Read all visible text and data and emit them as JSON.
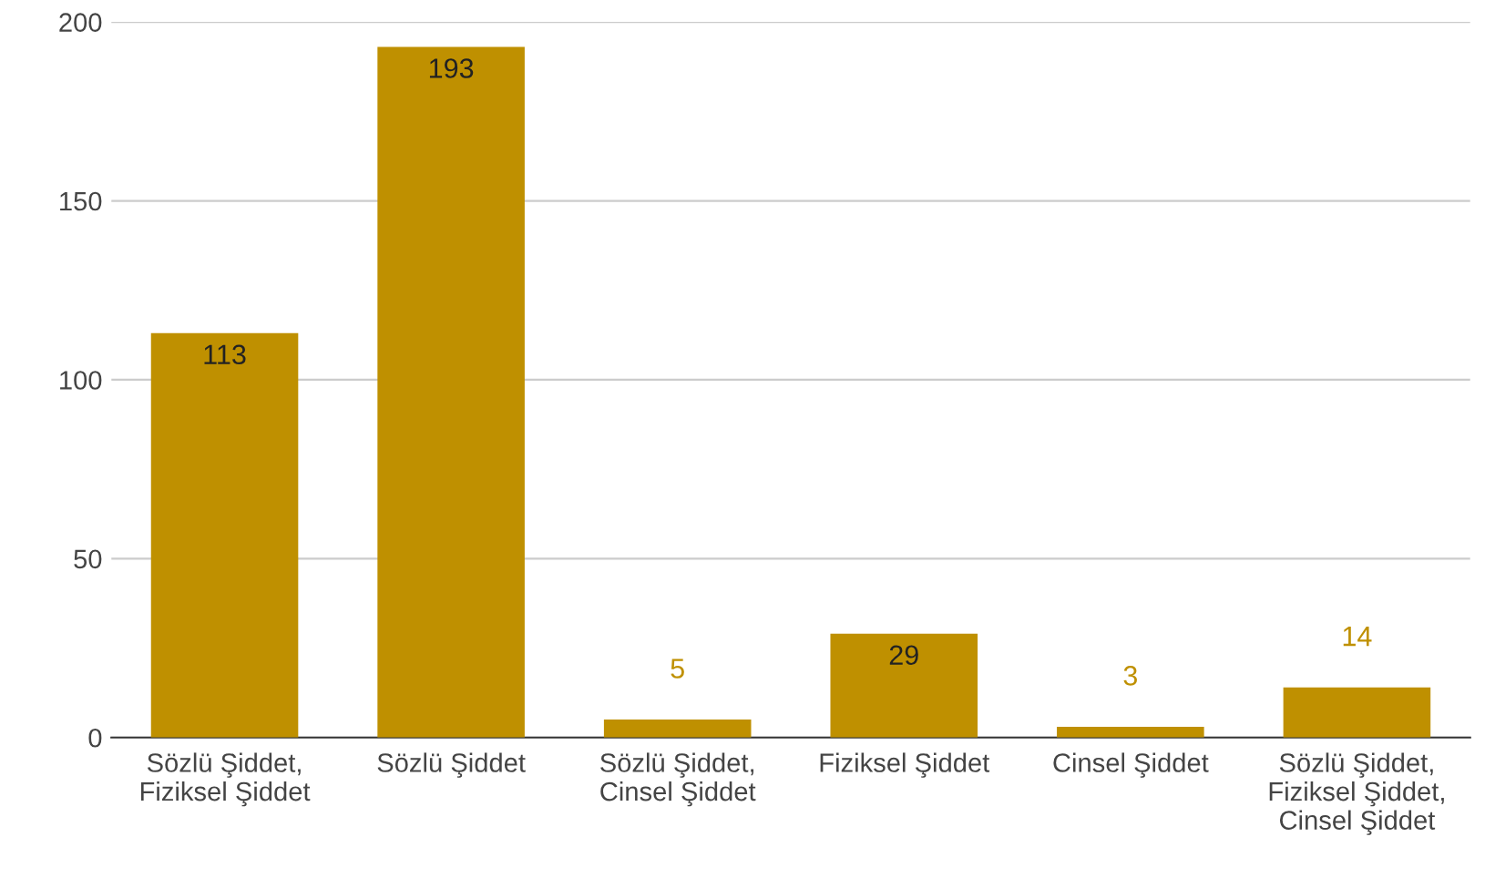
{
  "chart_data": {
    "type": "bar",
    "categories": [
      "Sözlü Şiddet,\nFiziksel Şiddet",
      "Sözlü Şiddet",
      "Sözlü Şiddet,\nCinsel Şiddet",
      "Fiziksel Şiddet",
      "Cinsel Şiddet",
      "Sözlü Şiddet,\nFiziksel Şiddet,\nCinsel Şiddet"
    ],
    "values": [
      113,
      193,
      5,
      29,
      3,
      14
    ],
    "color": "#bf9000",
    "ylim": [
      0,
      200
    ],
    "yticks": [
      0,
      50,
      100,
      150,
      200
    ],
    "grid": "y",
    "data_labels": true
  }
}
